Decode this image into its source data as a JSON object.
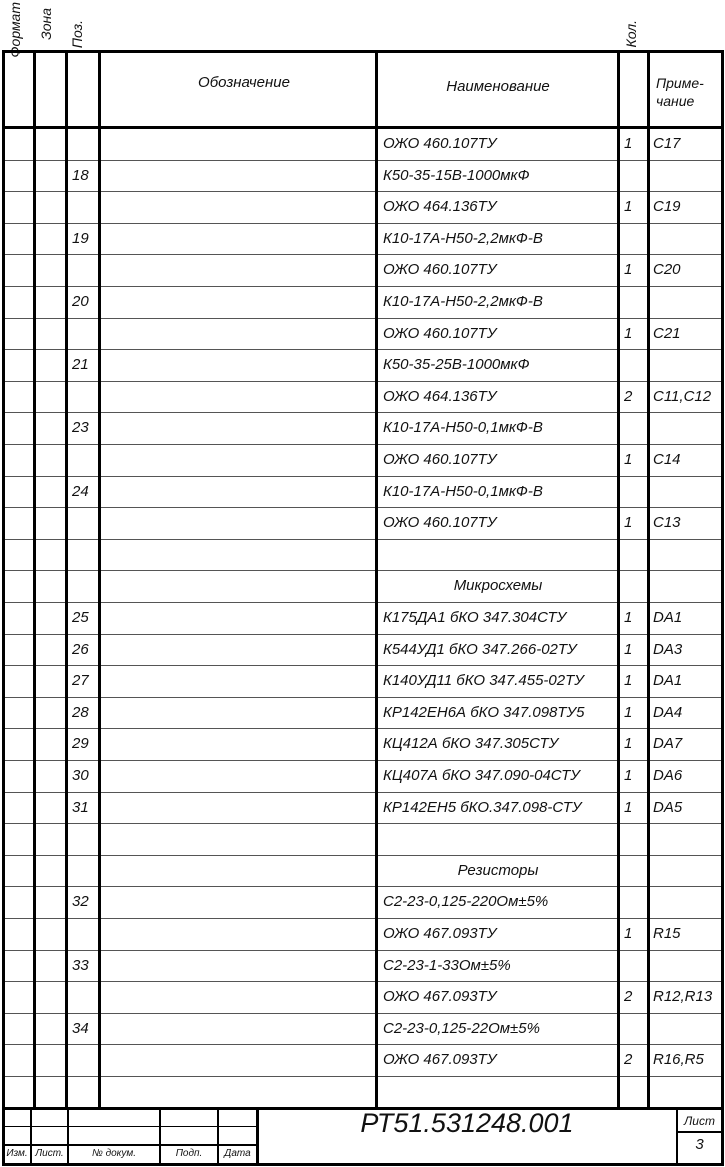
{
  "header": {
    "format": "Формат",
    "zone": "Зона",
    "pos": "Поз.",
    "designation": "Обозначение",
    "name": "Наименование",
    "qty": "Кол.",
    "note_line1": "Приме-",
    "note_line2": "чание"
  },
  "rows": [
    {
      "pos": "",
      "name": "ОЖО 460.107ТУ",
      "qty": "1",
      "note": "C17"
    },
    {
      "pos": "18",
      "name": "К50-35-15В-1000мкФ",
      "qty": "",
      "note": ""
    },
    {
      "pos": "",
      "name": "ОЖО 464.136ТУ",
      "qty": "1",
      "note": "C19"
    },
    {
      "pos": "19",
      "name": "К10-17А-Н50-2,2мкФ-В",
      "qty": "",
      "note": ""
    },
    {
      "pos": "",
      "name": "ОЖО 460.107ТУ",
      "qty": "1",
      "note": "C20"
    },
    {
      "pos": "20",
      "name": "К10-17А-Н50-2,2мкФ-В",
      "qty": "",
      "note": ""
    },
    {
      "pos": "",
      "name": "ОЖО 460.107ТУ",
      "qty": "1",
      "note": "C21"
    },
    {
      "pos": "21",
      "name": " К50-35-25В-1000мкФ",
      "qty": "",
      "note": ""
    },
    {
      "pos": "",
      "name": "ОЖО 464.136ТУ",
      "qty": "2",
      "note": "C11,C12"
    },
    {
      "pos": "23",
      "name": "К10-17А-Н50-0,1мкФ-В",
      "qty": "",
      "note": ""
    },
    {
      "pos": "",
      "name": "ОЖО 460.107ТУ",
      "qty": "1",
      "note": "C14"
    },
    {
      "pos": "24",
      "name": "К10-17А-Н50-0,1мкФ-В",
      "qty": "",
      "note": ""
    },
    {
      "pos": "",
      "name": "ОЖО 460.107ТУ",
      "qty": "1",
      "note": "C13"
    },
    {
      "pos": "",
      "name": "",
      "qty": "",
      "note": ""
    },
    {
      "pos": "",
      "name": "Микросхемы",
      "qty": "",
      "note": "",
      "section": true
    },
    {
      "pos": "25",
      "name": "К175ДА1  бКО 347.304СТУ",
      "qty": "1",
      "note": "DA1"
    },
    {
      "pos": "26",
      "name": "К544УД1  бКО 347.266-02ТУ",
      "qty": "1",
      "note": "DA3"
    },
    {
      "pos": "27",
      "name": "К140УД11  бКО 347.455-02ТУ",
      "qty": "1",
      "note": "DA1"
    },
    {
      "pos": "28",
      "name": "КР142ЕН6А  бКО 347.098ТУ5",
      "qty": "1",
      "note": "DA4"
    },
    {
      "pos": "29",
      "name": "КЦ412А  бКО 347.305СТУ",
      "qty": "1",
      "note": "DA7"
    },
    {
      "pos": "30",
      "name": "КЦ407А  бКО 347.090-04СТУ",
      "qty": "1",
      "note": "DA6"
    },
    {
      "pos": "31",
      "name": "КР142ЕН5  бКО.347.098-СТУ",
      "qty": "1",
      "note": "DA5"
    },
    {
      "pos": "",
      "name": "",
      "qty": "",
      "note": ""
    },
    {
      "pos": "",
      "name": "Резисторы",
      "qty": "",
      "note": "",
      "section": true
    },
    {
      "pos": "32",
      "name": "С2-23-0,125-220Ом±5%",
      "qty": "",
      "note": ""
    },
    {
      "pos": "",
      "name": "ОЖО 467.093ТУ",
      "qty": "1",
      "note": "R15"
    },
    {
      "pos": "33",
      "name": "С2-23-1-33Ом±5%",
      "qty": "",
      "note": ""
    },
    {
      "pos": "",
      "name": "ОЖО 467.093ТУ",
      "qty": "2",
      "note": "R12,R13"
    },
    {
      "pos": "34",
      "name": "С2-23-0,125-22Ом±5%",
      "qty": "",
      "note": ""
    },
    {
      "pos": "",
      "name": "ОЖО 467.093ТУ",
      "qty": "2",
      "note": "R16,R5"
    },
    {
      "pos": "",
      "name": "",
      "qty": "",
      "note": ""
    }
  ],
  "title_block": {
    "izm": "Изм.",
    "list": "Лист.",
    "doc_no": "№ докум.",
    "signature": "Подп.",
    "date": "Дата",
    "document_code": "РТ51.531248.001",
    "sheet_label": "Лист",
    "sheet_number": "3"
  }
}
